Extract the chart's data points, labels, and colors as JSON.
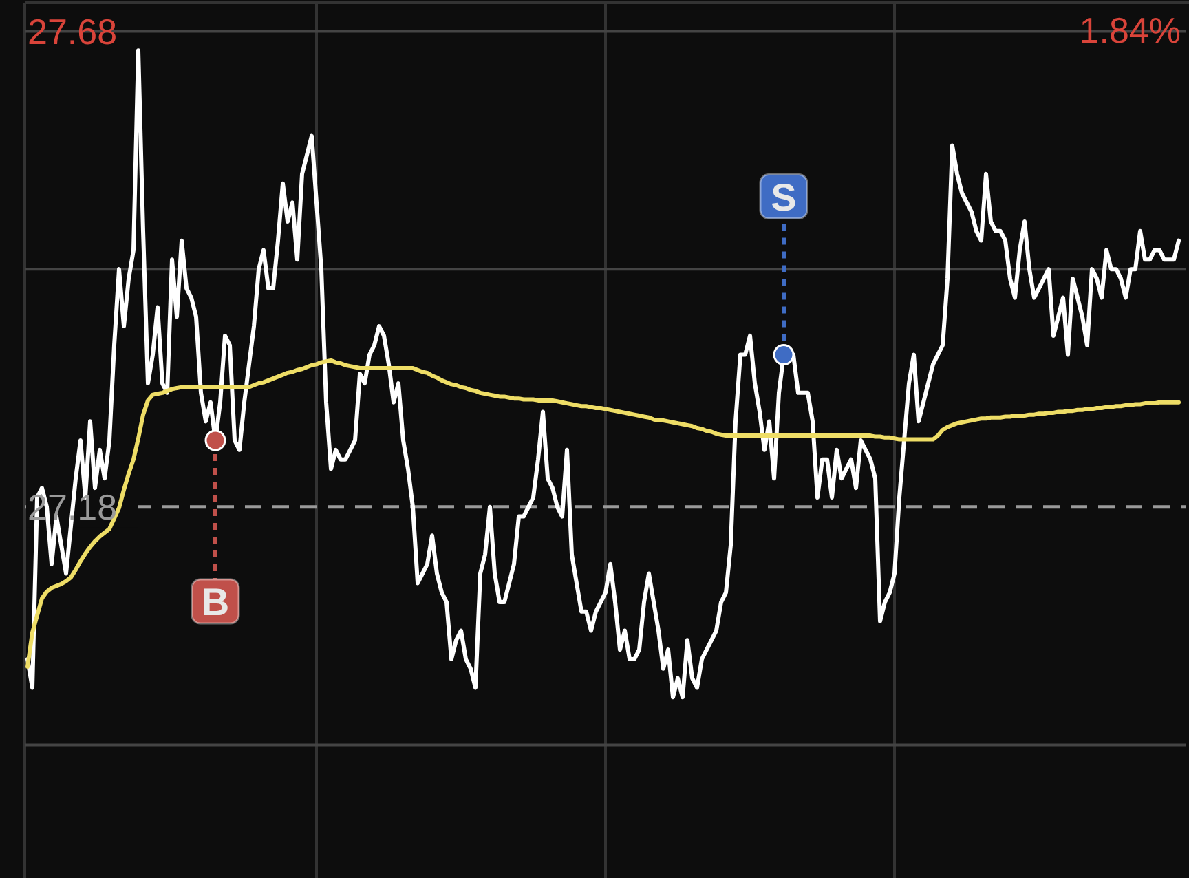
{
  "chart_data": {
    "type": "line",
    "categories": [
      null,
      null,
      null,
      null,
      null,
      null,
      null,
      null,
      null,
      null,
      null,
      null,
      null,
      null,
      null,
      null,
      null,
      null,
      null,
      null,
      null,
      null,
      null,
      null,
      null,
      null,
      null,
      null,
      null,
      null,
      null,
      null,
      null,
      null,
      null,
      null,
      null,
      null,
      null,
      null,
      null,
      null,
      null,
      null,
      null,
      null,
      null,
      null,
      null,
      null,
      null,
      null,
      null,
      null,
      null,
      null,
      null,
      null,
      null,
      null,
      null,
      null,
      null,
      null,
      null,
      null,
      null,
      null,
      null,
      null,
      null,
      null,
      null,
      null,
      null,
      null,
      null,
      null,
      null,
      null,
      null,
      null,
      null,
      null,
      null,
      null,
      null,
      null,
      null,
      null,
      null,
      null,
      null,
      null,
      null,
      null,
      null,
      null,
      null,
      null,
      null,
      null,
      null,
      null,
      null,
      null,
      null,
      null,
      null,
      null,
      null,
      null,
      null,
      null,
      null,
      null,
      null,
      null,
      null,
      null,
      null,
      null,
      null,
      null,
      null,
      null,
      null,
      null,
      null,
      null,
      null,
      null,
      null,
      null,
      null,
      null,
      null,
      null,
      null,
      null,
      null,
      null,
      null,
      null,
      null,
      null,
      null,
      null,
      null,
      null,
      null,
      null,
      null,
      null,
      null,
      null,
      null,
      null,
      null,
      null,
      null,
      null,
      null,
      null,
      null,
      null,
      null,
      null,
      null,
      null,
      null,
      null,
      null,
      null,
      null,
      null,
      null,
      null,
      null,
      null,
      null,
      null,
      null,
      null,
      null,
      null,
      null,
      null,
      null,
      null,
      null,
      null,
      null,
      null,
      null,
      null,
      null,
      null,
      null,
      null,
      null,
      null,
      null,
      null,
      null,
      null,
      null,
      null,
      null,
      null,
      null,
      null,
      null,
      null,
      null,
      null,
      null,
      null,
      null,
      null,
      null,
      null,
      null,
      null,
      null,
      null,
      null,
      null,
      null,
      null,
      null,
      null,
      null,
      null,
      null,
      null,
      null,
      null,
      null,
      null
    ],
    "ylim": [
      26.79,
      27.71
    ],
    "yticks": [
      {
        "value": 26.93,
        "label": null
      },
      {
        "value": 27.18,
        "label": "27.18"
      },
      {
        "value": 27.43,
        "label": null
      },
      {
        "value": 27.68,
        "label": "27.68"
      }
    ],
    "annotations": [
      "1.84%"
    ],
    "grid": true,
    "marker": "none",
    "line_style": "solid",
    "ref_lines": [
      {
        "axis": "y",
        "value": 27.18,
        "label": null,
        "color": "#9a9a9a",
        "line_style": "dashed"
      }
    ],
    "series": [
      {
        "color": "#ffffff",
        "values": [
          27.02,
          26.99,
          27.19,
          27.2,
          27.18,
          27.12,
          27.17,
          27.14,
          27.11,
          27.16,
          27.21,
          27.25,
          27.19,
          27.27,
          27.2,
          27.24,
          27.21,
          27.25,
          27.35,
          27.43,
          27.37,
          27.42,
          27.45,
          27.66,
          27.47,
          27.31,
          27.34,
          27.39,
          27.31,
          27.3,
          27.44,
          27.38,
          27.46,
          27.41,
          27.4,
          27.38,
          27.3,
          27.27,
          27.29,
          27.25,
          27.29,
          27.36,
          27.35,
          27.25,
          27.24,
          27.29,
          27.33,
          27.37,
          27.43,
          27.45,
          27.41,
          27.41,
          27.46,
          27.52,
          27.48,
          27.5,
          27.44,
          27.53,
          27.55,
          27.57,
          27.5,
          27.43,
          27.29,
          27.22,
          27.24,
          27.23,
          27.23,
          27.24,
          27.25,
          27.32,
          27.31,
          27.34,
          27.35,
          27.37,
          27.36,
          27.33,
          27.29,
          27.31,
          27.25,
          27.22,
          27.18,
          27.1,
          27.11,
          27.12,
          27.15,
          27.11,
          27.09,
          27.08,
          27.02,
          27.04,
          27.05,
          27.02,
          27.01,
          26.99,
          27.11,
          27.13,
          27.18,
          27.11,
          27.08,
          27.08,
          27.1,
          27.12,
          27.17,
          27.17,
          27.18,
          27.19,
          27.23,
          27.28,
          27.21,
          27.2,
          27.18,
          27.17,
          27.24,
          27.13,
          27.1,
          27.07,
          27.07,
          27.05,
          27.07,
          27.08,
          27.09,
          27.12,
          27.08,
          27.03,
          27.05,
          27.02,
          27.02,
          27.03,
          27.08,
          27.11,
          27.08,
          27.05,
          27.01,
          27.03,
          26.98,
          27.0,
          26.98,
          27.04,
          27.0,
          26.99,
          27.02,
          27.03,
          27.04,
          27.05,
          27.08,
          27.09,
          27.14,
          27.27,
          27.34,
          27.34,
          27.36,
          27.31,
          27.28,
          27.24,
          27.27,
          27.21,
          27.3,
          27.34,
          27.34,
          27.34,
          27.3,
          27.3,
          27.3,
          27.27,
          27.19,
          27.23,
          27.23,
          27.19,
          27.24,
          27.21,
          27.22,
          27.23,
          27.2,
          27.25,
          27.24,
          27.23,
          27.21,
          27.06,
          27.08,
          27.09,
          27.11,
          27.19,
          27.25,
          27.31,
          27.34,
          27.27,
          27.29,
          27.31,
          27.33,
          27.34,
          27.35,
          27.42,
          27.56,
          27.53,
          27.51,
          27.5,
          27.49,
          27.47,
          27.46,
          27.53,
          27.48,
          27.47,
          27.47,
          27.46,
          27.42,
          27.4,
          27.45,
          27.48,
          27.43,
          27.4,
          27.41,
          27.42,
          27.43,
          27.36,
          27.38,
          27.4,
          27.34,
          27.42,
          27.4,
          27.38,
          27.35,
          27.43,
          27.42,
          27.4,
          27.45,
          27.43,
          27.43,
          27.42,
          27.4,
          27.43,
          27.43,
          27.47,
          27.44,
          27.44,
          27.45,
          27.45,
          27.44,
          27.44,
          27.44,
          27.46
        ]
      },
      {
        "color": "#eedd66",
        "values": [
          27.012,
          27.048,
          27.066,
          27.084,
          27.091,
          27.095,
          27.097,
          27.099,
          27.102,
          27.106,
          27.114,
          27.123,
          27.131,
          27.138,
          27.144,
          27.149,
          27.153,
          27.157,
          27.168,
          27.179,
          27.198,
          27.215,
          27.23,
          27.252,
          27.277,
          27.292,
          27.298,
          27.299,
          27.3,
          27.302,
          27.304,
          27.305,
          27.306,
          27.306,
          27.306,
          27.306,
          27.306,
          27.306,
          27.306,
          27.306,
          27.306,
          27.306,
          27.306,
          27.306,
          27.306,
          27.306,
          27.306,
          27.308,
          27.31,
          27.311,
          27.313,
          27.315,
          27.317,
          27.319,
          27.321,
          27.322,
          27.324,
          27.325,
          27.327,
          27.329,
          27.33,
          27.332,
          27.333,
          27.334,
          27.332,
          27.331,
          27.329,
          27.328,
          27.327,
          27.326,
          27.326,
          27.326,
          27.326,
          27.326,
          27.326,
          27.326,
          27.326,
          27.326,
          27.326,
          27.326,
          27.326,
          27.324,
          27.322,
          27.321,
          27.318,
          27.316,
          27.313,
          27.311,
          27.309,
          27.308,
          27.306,
          27.305,
          27.303,
          27.302,
          27.3,
          27.299,
          27.298,
          27.297,
          27.296,
          27.296,
          27.295,
          27.294,
          27.294,
          27.293,
          27.293,
          27.293,
          27.292,
          27.292,
          27.292,
          27.292,
          27.291,
          27.29,
          27.289,
          27.288,
          27.287,
          27.286,
          27.286,
          27.285,
          27.284,
          27.284,
          27.283,
          27.282,
          27.281,
          27.28,
          27.279,
          27.278,
          27.277,
          27.276,
          27.275,
          27.274,
          27.272,
          27.271,
          27.271,
          27.27,
          27.269,
          27.268,
          27.267,
          27.266,
          27.265,
          27.263,
          27.262,
          27.26,
          27.259,
          27.257,
          27.256,
          27.255,
          27.255,
          27.255,
          27.255,
          27.255,
          27.255,
          27.255,
          27.255,
          27.255,
          27.255,
          27.255,
          27.255,
          27.255,
          27.255,
          27.255,
          27.255,
          27.255,
          27.255,
          27.255,
          27.255,
          27.255,
          27.255,
          27.255,
          27.255,
          27.255,
          27.255,
          27.255,
          27.255,
          27.255,
          27.255,
          27.255,
          27.254,
          27.254,
          27.253,
          27.253,
          27.252,
          27.251,
          27.251,
          27.251,
          27.251,
          27.251,
          27.251,
          27.251,
          27.251,
          27.255,
          27.261,
          27.264,
          27.266,
          27.268,
          27.269,
          27.27,
          27.271,
          27.272,
          27.273,
          27.273,
          27.274,
          27.274,
          27.274,
          27.275,
          27.275,
          27.276,
          27.276,
          27.276,
          27.277,
          27.277,
          27.278,
          27.278,
          27.279,
          27.279,
          27.28,
          27.28,
          27.281,
          27.281,
          27.282,
          27.282,
          27.283,
          27.283,
          27.284,
          27.284,
          27.285,
          27.285,
          27.286,
          27.286,
          27.287,
          27.287,
          27.288,
          27.288,
          27.289,
          27.289,
          27.289,
          27.29,
          27.29,
          27.29,
          27.29,
          27.29
        ]
      },
      {
        "type": "scatter",
        "name": "B",
        "color": "#c0504a",
        "marker": "circle",
        "values": [
          null,
          null,
          null,
          null,
          null,
          null,
          null,
          null,
          null,
          null,
          null,
          null,
          null,
          null,
          null,
          null,
          null,
          null,
          null,
          null,
          null,
          null,
          null,
          null,
          null,
          null,
          null,
          null,
          null,
          null,
          null,
          null,
          null,
          null,
          null,
          null,
          null,
          null,
          null,
          27.25,
          null,
          null,
          null,
          null,
          null,
          null,
          null,
          null,
          null,
          null,
          null,
          null,
          null,
          null,
          null,
          null,
          null,
          null,
          null,
          null,
          null,
          null,
          null,
          null,
          null,
          null,
          null,
          null,
          null,
          null,
          null,
          null,
          null,
          null,
          null,
          null,
          null,
          null,
          null,
          null,
          null,
          null,
          null,
          null,
          null,
          null,
          null,
          null,
          null,
          null,
          null,
          null,
          null,
          null,
          null,
          null,
          null,
          null,
          null,
          null,
          null,
          null,
          null,
          null,
          null,
          null,
          null,
          null,
          null,
          null,
          null,
          null,
          null,
          null,
          null,
          null,
          null,
          null,
          null,
          null,
          null,
          null,
          null,
          null,
          null,
          null,
          null,
          null,
          null,
          null,
          null,
          null,
          null,
          null,
          null,
          null,
          null,
          null,
          null,
          null,
          null,
          null,
          null,
          null,
          null,
          null,
          null,
          null,
          null,
          null,
          null,
          null,
          null,
          null,
          null,
          null,
          null,
          null,
          null,
          null,
          null,
          null,
          null,
          null,
          null,
          null,
          null,
          null,
          null,
          null,
          null,
          null,
          null,
          null,
          null,
          null,
          null,
          null,
          null,
          null,
          null,
          null,
          null,
          null,
          null,
          null,
          null,
          null,
          null,
          null,
          null,
          null,
          null,
          null,
          null,
          null,
          null,
          null,
          null,
          null,
          null,
          null,
          null,
          null,
          null,
          null,
          null,
          null,
          null,
          null,
          null,
          null,
          null,
          null,
          null,
          null,
          null,
          null,
          null,
          null,
          null,
          null,
          null,
          null,
          null,
          null,
          null,
          null,
          null,
          null,
          null,
          null,
          null,
          null,
          null,
          null,
          null,
          null,
          null,
          null
        ]
      },
      {
        "type": "scatter",
        "name": "S",
        "color": "#3f6cc4",
        "marker": "circle",
        "values": [
          null,
          null,
          null,
          null,
          null,
          null,
          null,
          null,
          null,
          null,
          null,
          null,
          null,
          null,
          null,
          null,
          null,
          null,
          null,
          null,
          null,
          null,
          null,
          null,
          null,
          null,
          null,
          null,
          null,
          null,
          null,
          null,
          null,
          null,
          null,
          null,
          null,
          null,
          null,
          null,
          null,
          null,
          null,
          null,
          null,
          null,
          null,
          null,
          null,
          null,
          null,
          null,
          null,
          null,
          null,
          null,
          null,
          null,
          null,
          null,
          null,
          null,
          null,
          null,
          null,
          null,
          null,
          null,
          null,
          null,
          null,
          null,
          null,
          null,
          null,
          null,
          null,
          null,
          null,
          null,
          null,
          null,
          null,
          null,
          null,
          null,
          null,
          null,
          null,
          null,
          null,
          null,
          null,
          null,
          null,
          null,
          null,
          null,
          null,
          null,
          null,
          null,
          null,
          null,
          null,
          null,
          null,
          null,
          null,
          null,
          null,
          null,
          null,
          null,
          null,
          null,
          null,
          null,
          null,
          null,
          null,
          null,
          null,
          null,
          null,
          null,
          null,
          null,
          null,
          null,
          null,
          null,
          null,
          null,
          null,
          null,
          null,
          null,
          null,
          null,
          null,
          null,
          null,
          null,
          null,
          null,
          null,
          null,
          null,
          null,
          null,
          null,
          null,
          null,
          null,
          null,
          null,
          27.34,
          null,
          null,
          null,
          null,
          null,
          null,
          null,
          null,
          null,
          null,
          null,
          null,
          null,
          null,
          null,
          null,
          null,
          null,
          null,
          null,
          null,
          null,
          null,
          null,
          null,
          null,
          null,
          null,
          null,
          null,
          null,
          null,
          null,
          null,
          null,
          null,
          null,
          null,
          null,
          null,
          null,
          null,
          null,
          null,
          null,
          null,
          null,
          null,
          null,
          null,
          null,
          null,
          null,
          null,
          null,
          null,
          null,
          null,
          null,
          null,
          null,
          null,
          null,
          null,
          null,
          null,
          null,
          null,
          null,
          null,
          null,
          null,
          null,
          null,
          null,
          null,
          null,
          null,
          null,
          null,
          null,
          null
        ]
      }
    ]
  }
}
